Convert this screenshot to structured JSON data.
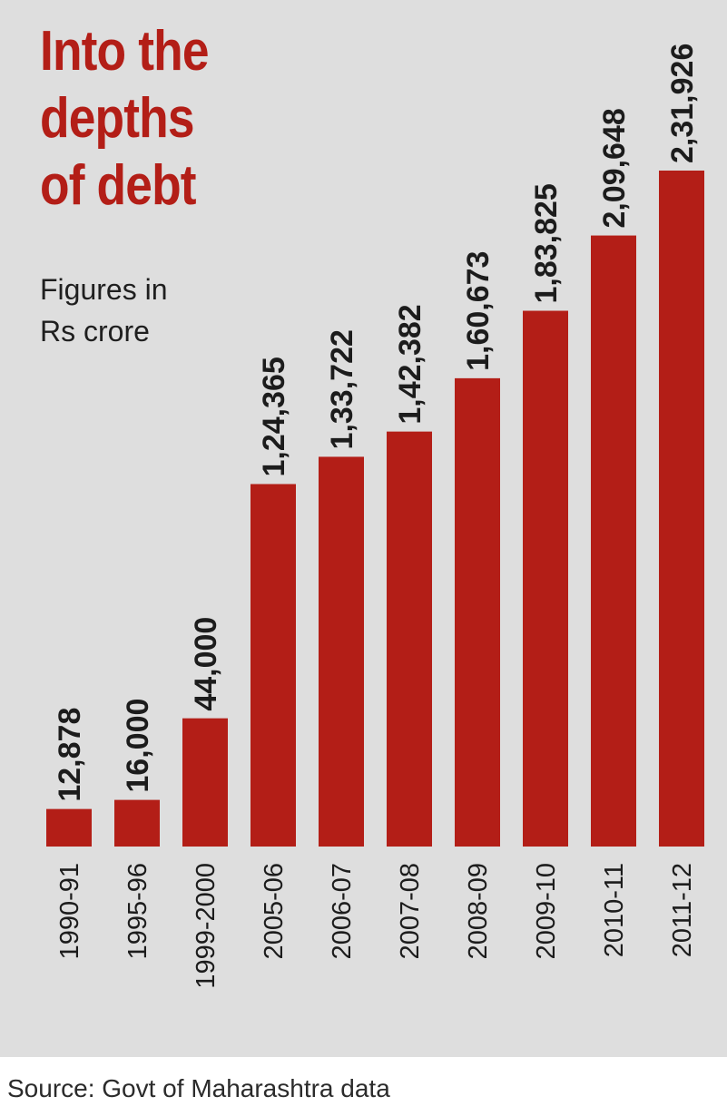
{
  "title_lines": [
    "Into the",
    "depths",
    "of debt"
  ],
  "subtitle_lines": [
    "Figures in",
    "Rs crore"
  ],
  "source": "Source: Govt of Maharashtra data",
  "colors": {
    "panel_background": "#dedede",
    "bar": "#b31e17",
    "title": "#b31e17",
    "text": "#1c1c1c"
  },
  "chart_data": {
    "type": "bar",
    "title": "Into the depths of debt",
    "subtitle": "Figures in Rs crore",
    "categories": [
      "1990-91",
      "1995-96",
      "1999-2000",
      "2005-06",
      "2006-07",
      "2007-08",
      "2008-09",
      "2009-10",
      "2010-11",
      "2011-12"
    ],
    "values": [
      12878,
      16000,
      44000,
      124365,
      133722,
      142382,
      160673,
      183825,
      209648,
      231926
    ],
    "value_labels": [
      "12,878",
      "16,000",
      "44,000",
      "1,24,365",
      "1,33,722",
      "1,42,382",
      "1,60,673",
      "1,83,825",
      "2,09,648",
      "2,31,926"
    ],
    "ylim": [
      0,
      231926
    ],
    "grid": false,
    "legend": "none"
  }
}
